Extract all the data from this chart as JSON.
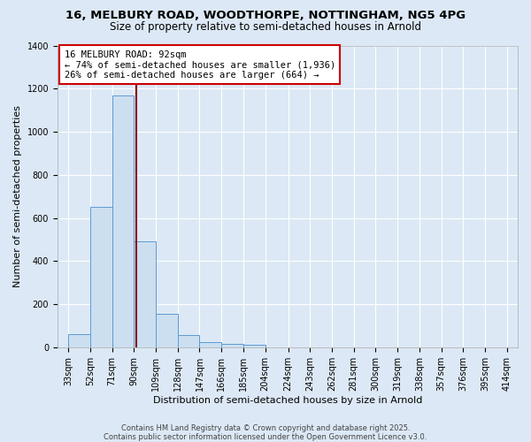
{
  "title_line1": "16, MELBURY ROAD, WOODTHORPE, NOTTINGHAM, NG5 4PG",
  "title_line2": "Size of property relative to semi-detached houses in Arnold",
  "xlabel": "Distribution of semi-detached houses by size in Arnold",
  "ylabel": "Number of semi-detached properties",
  "bin_labels": [
    "33sqm",
    "52sqm",
    "71sqm",
    "90sqm",
    "109sqm",
    "128sqm",
    "147sqm",
    "166sqm",
    "185sqm",
    "204sqm",
    "224sqm",
    "243sqm",
    "262sqm",
    "281sqm",
    "300sqm",
    "319sqm",
    "338sqm",
    "357sqm",
    "376sqm",
    "395sqm",
    "414sqm"
  ],
  "bin_edges": [
    33,
    52,
    71,
    90,
    109,
    128,
    147,
    166,
    185,
    204,
    224,
    243,
    262,
    281,
    300,
    319,
    338,
    357,
    376,
    395,
    414
  ],
  "bar_heights": [
    60,
    650,
    1170,
    490,
    155,
    55,
    25,
    15,
    10,
    0,
    0,
    0,
    0,
    0,
    0,
    0,
    0,
    0,
    0,
    0,
    0
  ],
  "bar_color": "#ccdff0",
  "bar_edge_color": "#5b9bd5",
  "property_size": 92,
  "property_line_color": "#8B0000",
  "ylim_max": 1400,
  "yticks": [
    0,
    200,
    400,
    600,
    800,
    1000,
    1200,
    1400
  ],
  "annotation_text_line1": "16 MELBURY ROAD: 92sqm",
  "annotation_text_line2": "← 74% of semi-detached houses are smaller (1,936)",
  "annotation_text_line3": "26% of semi-detached houses are larger (664) →",
  "annotation_box_facecolor": "#ffffff",
  "annotation_box_edgecolor": "#cc0000",
  "background_color": "#dce8f5",
  "grid_color": "#ffffff",
  "footer_line1": "Contains HM Land Registry data © Crown copyright and database right 2025.",
  "footer_line2": "Contains public sector information licensed under the Open Government Licence v3.0.",
  "title_fontsize": 9.5,
  "subtitle_fontsize": 8.5,
  "axis_label_fontsize": 8,
  "tick_fontsize": 7,
  "annotation_fontsize": 7.5,
  "footer_fontsize": 6
}
